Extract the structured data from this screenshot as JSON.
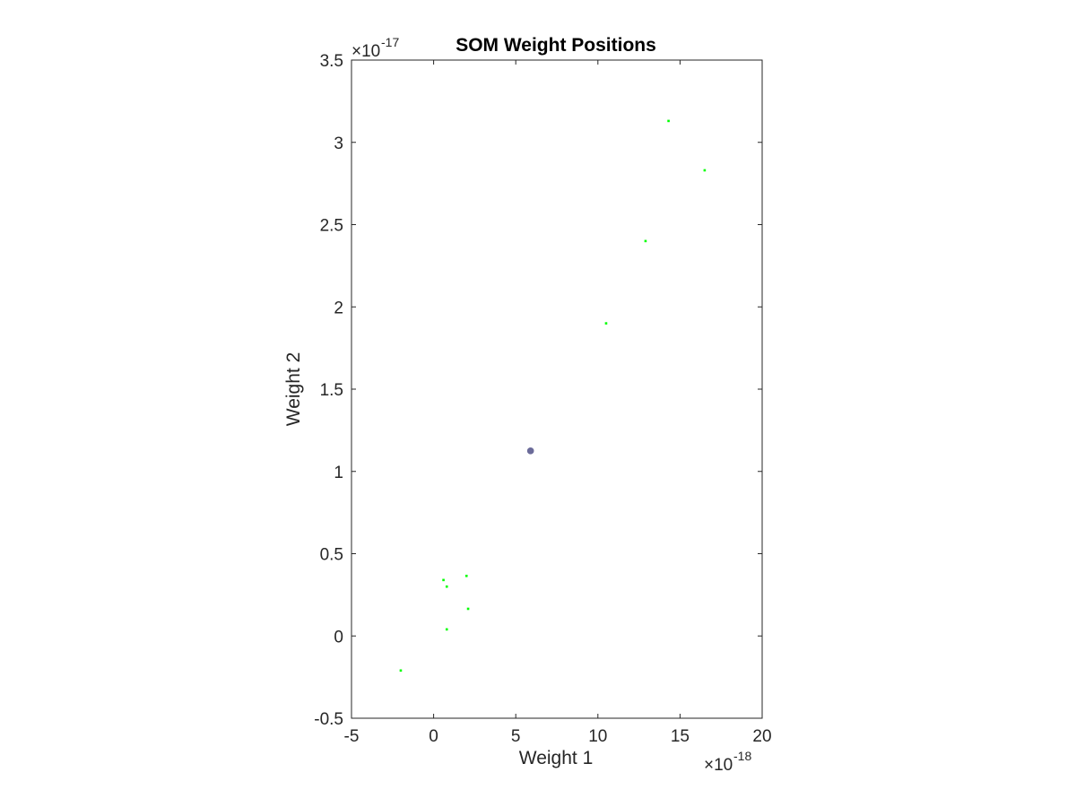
{
  "chart_data": {
    "type": "scatter",
    "title": "SOM Weight Positions",
    "xlabel": "Weight 1",
    "ylabel": "Weight 2",
    "x_multiplier": {
      "base": "×10",
      "exponent": "-18"
    },
    "y_multiplier": {
      "base": "×10",
      "exponent": "-17"
    },
    "xlim": [
      -5,
      20
    ],
    "ylim": [
      -0.5,
      3.5
    ],
    "x_ticks": [
      -5,
      0,
      5,
      10,
      15,
      20
    ],
    "x_tick_labels": [
      "-5",
      "0",
      "5",
      "10",
      "15",
      "20"
    ],
    "y_ticks": [
      -0.5,
      0,
      0.5,
      1,
      1.5,
      2,
      2.5,
      3,
      3.5
    ],
    "y_tick_labels": [
      "-0.5",
      "0",
      "0.5",
      "1",
      "1.5",
      "2",
      "2.5",
      "3",
      "3.5"
    ],
    "grid": false,
    "series": [
      {
        "color": "#00ff00",
        "marker": "small-dot",
        "points": [
          {
            "x": 14.3,
            "y": 3.13
          },
          {
            "x": 16.5,
            "y": 2.83
          },
          {
            "x": 12.9,
            "y": 2.4
          },
          {
            "x": 10.5,
            "y": 1.9
          },
          {
            "x": 2.0,
            "y": 0.365
          },
          {
            "x": 0.6,
            "y": 0.34
          },
          {
            "x": 0.8,
            "y": 0.3
          },
          {
            "x": 2.1,
            "y": 0.165
          },
          {
            "x": 0.8,
            "y": 0.04
          },
          {
            "x": -2.0,
            "y": -0.21
          }
        ]
      },
      {
        "color": "#6b6b99",
        "marker": "dot",
        "points": [
          {
            "x": 5.9,
            "y": 1.125
          }
        ]
      }
    ]
  }
}
